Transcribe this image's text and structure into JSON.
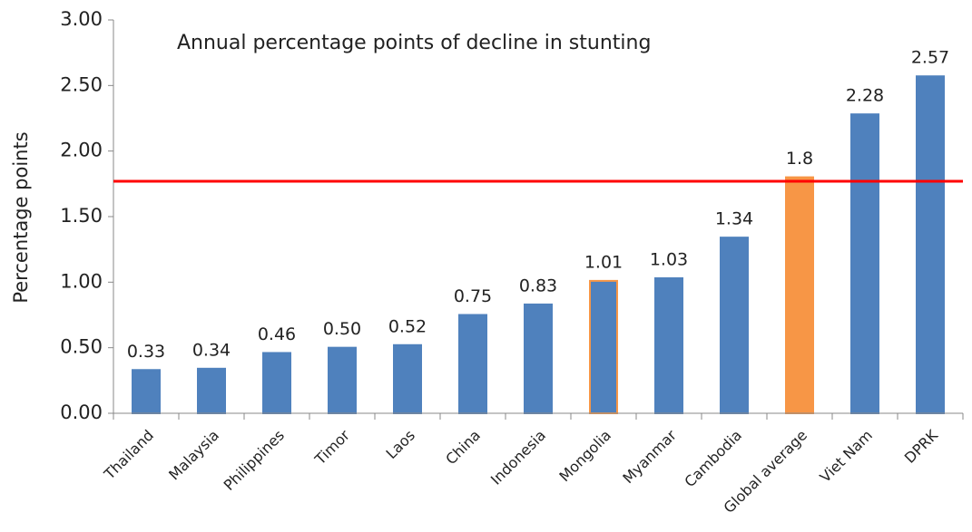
{
  "chart_data": {
    "type": "bar",
    "title": "Annual percentage points of decline in stunting",
    "ylabel": "Percentage points",
    "categories": [
      "Thailand",
      "Malaysia",
      "Philippines",
      "Timor",
      "Laos",
      "China",
      "Indonesia",
      "Mongolia",
      "Myanmar",
      "Cambodia",
      "Global average",
      "Viet Nam",
      "DPRK"
    ],
    "values": [
      0.33,
      0.34,
      0.46,
      0.5,
      0.52,
      0.75,
      0.83,
      1.01,
      1.03,
      1.34,
      1.8,
      2.28,
      2.57
    ],
    "value_labels": [
      "0.33",
      "0.34",
      "0.46",
      "0.50",
      "0.52",
      "0.75",
      "0.83",
      "1.01",
      "1.03",
      "1.34",
      "1.8",
      "2.28",
      "2.57"
    ],
    "colors": [
      "#4f81bd",
      "#4f81bd",
      "#4f81bd",
      "#4f81bd",
      "#4f81bd",
      "#4f81bd",
      "#4f81bd",
      "#4f81bd",
      "#4f81bd",
      "#4f81bd",
      "#f79646",
      "#4f81bd",
      "#4f81bd"
    ],
    "edgecolors": [
      "#4f81bd",
      "#4f81bd",
      "#4f81bd",
      "#4f81bd",
      "#4f81bd",
      "#4f81bd",
      "#4f81bd",
      "#f79646",
      "#4f81bd",
      "#4f81bd",
      "#f79646",
      "#4f81bd",
      "#4f81bd"
    ],
    "ylim": [
      0,
      3
    ],
    "yticks": [
      {
        "value": 0,
        "label": "0.00"
      },
      {
        "value": 0.5,
        "label": "0.50"
      },
      {
        "value": 1,
        "label": "1.00"
      },
      {
        "value": 1.5,
        "label": "1.50"
      },
      {
        "value": 2,
        "label": "2.00"
      },
      {
        "value": 2.5,
        "label": "2.50"
      },
      {
        "value": 3,
        "label": "3.00"
      }
    ],
    "reference_line": {
      "value": 1.77,
      "color": "#ff0000"
    },
    "grid": false
  }
}
